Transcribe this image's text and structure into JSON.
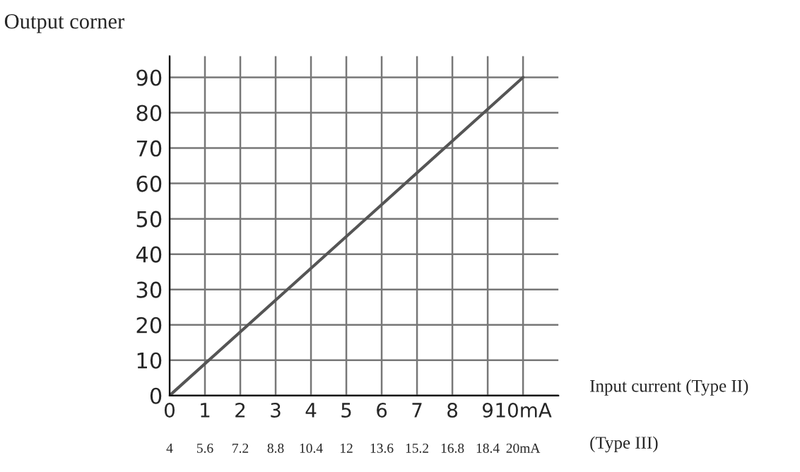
{
  "chart_data": {
    "type": "line",
    "ylabel": "Output corner",
    "xlabel": "Input current (Type II)",
    "x2label": "(Type III)",
    "x": [
      0,
      10
    ],
    "series": [
      {
        "color": "#555555",
        "values": [
          0,
          90
        ]
      }
    ],
    "xlim": [
      0,
      11
    ],
    "xticks": [
      0,
      1,
      2,
      3,
      4,
      5,
      6,
      7,
      8,
      9,
      {
        "value": 10,
        "label": "10mA"
      }
    ],
    "x2lim": [
      4,
      21.6
    ],
    "x2ticks": [
      4,
      5.6,
      7.2,
      8.8,
      10.4,
      12,
      13.6,
      15.2,
      16.8,
      18.4,
      {
        "value": 20,
        "label": "20mA"
      }
    ],
    "ylim": [
      0,
      96
    ],
    "yticks": [
      0,
      10,
      20,
      30,
      40,
      50,
      60,
      70,
      80,
      90
    ],
    "grid": true,
    "marker": "none",
    "line_style": "solid"
  }
}
